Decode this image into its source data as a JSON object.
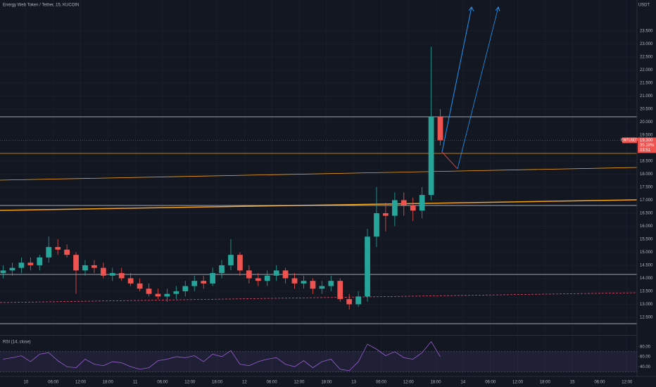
{
  "chart_data": [
    {
      "type": "candlestick",
      "title": "Energy Web Token / Tether, 15, KUCOIN",
      "unit_label": "USDT",
      "x": [
        -5,
        -3,
        -1,
        1,
        3,
        5,
        7,
        9,
        11,
        13,
        15,
        17,
        19,
        21,
        23,
        25,
        27,
        29,
        31,
        33,
        35,
        37,
        39,
        41,
        43,
        45,
        47,
        49,
        51,
        53,
        55,
        57,
        59,
        61,
        63,
        65,
        67,
        69,
        71,
        73,
        75,
        77,
        79,
        81,
        83,
        85,
        87,
        89,
        91
      ],
      "open": [
        14.2,
        14.3,
        14.4,
        14.6,
        14.5,
        14.8,
        15.2,
        15.1,
        14.9,
        14.3,
        14.5,
        14.4,
        14.1,
        14.2,
        14.0,
        13.8,
        13.6,
        13.4,
        13.3,
        13.4,
        13.5,
        13.7,
        13.9,
        13.8,
        14.2,
        14.5,
        14.9,
        14.3,
        14.0,
        13.9,
        14.1,
        14.3,
        14.0,
        13.8,
        13.9,
        13.6,
        13.7,
        13.9,
        13.2,
        13.0,
        13.3,
        15.6,
        16.5,
        16.4,
        17.0,
        16.8,
        16.6,
        17.2,
        20.2
      ],
      "high": [
        14.5,
        14.6,
        14.8,
        14.8,
        14.9,
        15.6,
        15.5,
        15.3,
        15.0,
        14.7,
        14.7,
        14.6,
        14.4,
        14.4,
        14.2,
        14.0,
        13.8,
        13.6,
        13.6,
        13.7,
        13.9,
        14.1,
        14.1,
        14.4,
        14.7,
        15.5,
        15.0,
        14.5,
        14.2,
        14.3,
        14.5,
        14.4,
        14.2,
        14.1,
        14.0,
        13.9,
        14.1,
        14.0,
        13.4,
        13.5,
        15.9,
        17.5,
        16.9,
        17.3,
        17.3,
        17.1,
        17.5,
        22.9,
        20.5
      ],
      "low": [
        14.0,
        14.1,
        14.2,
        14.3,
        14.3,
        14.6,
        14.9,
        14.8,
        13.4,
        14.1,
        14.2,
        14.0,
        13.9,
        13.9,
        13.7,
        13.5,
        13.3,
        13.2,
        13.1,
        13.2,
        13.3,
        13.5,
        13.6,
        13.7,
        14.0,
        14.3,
        14.1,
        13.8,
        13.7,
        13.7,
        13.9,
        13.8,
        13.6,
        13.6,
        13.4,
        13.4,
        13.5,
        13.1,
        12.8,
        12.9,
        13.1,
        15.2,
        15.8,
        16.0,
        16.4,
        16.2,
        16.3,
        17.0,
        19.1
      ],
      "close": [
        14.3,
        14.4,
        14.6,
        14.5,
        14.8,
        15.2,
        15.1,
        14.9,
        14.3,
        14.5,
        14.4,
        14.1,
        14.2,
        14.0,
        13.8,
        13.6,
        13.4,
        13.3,
        13.4,
        13.5,
        13.7,
        13.9,
        13.8,
        14.2,
        14.5,
        14.9,
        14.3,
        14.0,
        13.9,
        14.1,
        14.3,
        14.0,
        13.8,
        13.9,
        13.6,
        13.7,
        13.9,
        13.2,
        13.0,
        13.3,
        15.6,
        16.5,
        16.4,
        17.0,
        16.8,
        16.6,
        17.2,
        20.2,
        19.3
      ],
      "up_color": "#26a69a",
      "down_color": "#ef5350",
      "last_price": {
        "symbol": "EWTUSDT",
        "value": 19.3,
        "label": "19.300",
        "change": "35.18%",
        "countdown": "03:51"
      },
      "xlim": [
        -5.7,
        134.2
      ],
      "ylim": [
        11.85,
        24.69
      ],
      "xticks": [
        {
          "value": 0,
          "label": "10"
        },
        {
          "value": 6,
          "label": "06:00"
        },
        {
          "value": 12,
          "label": "12:00"
        },
        {
          "value": 18,
          "label": "18:00"
        },
        {
          "value": 24,
          "label": "11"
        },
        {
          "value": 30,
          "label": "06:00"
        },
        {
          "value": 36,
          "label": "12:00"
        },
        {
          "value": 42,
          "label": "18:00"
        },
        {
          "value": 48,
          "label": "12"
        },
        {
          "value": 54,
          "label": "06:00"
        },
        {
          "value": 60,
          "label": "12:00"
        },
        {
          "value": 66,
          "label": "18:00"
        },
        {
          "value": 72,
          "label": "13"
        },
        {
          "value": 78,
          "label": "06:00"
        },
        {
          "value": 84,
          "label": "12:00"
        },
        {
          "value": 90,
          "label": "18:00"
        },
        {
          "value": 96,
          "label": "14"
        },
        {
          "value": 102,
          "label": "06:00"
        },
        {
          "value": 108,
          "label": "12:00"
        },
        {
          "value": 114,
          "label": "18:00"
        },
        {
          "value": 120,
          "label": "15"
        },
        {
          "value": 126,
          "label": "06:00"
        },
        {
          "value": 132,
          "label": "12:00"
        }
      ],
      "yticks": [
        {
          "value": 12.5,
          "label": "12.500"
        },
        {
          "value": 13,
          "label": "13.000"
        },
        {
          "value": 13.5,
          "label": "13.500"
        },
        {
          "value": 14,
          "label": "14.000"
        },
        {
          "value": 14.5,
          "label": "14.500"
        },
        {
          "value": 15,
          "label": "15.000"
        },
        {
          "value": 15.5,
          "label": "15.500"
        },
        {
          "value": 16,
          "label": "16.000"
        },
        {
          "value": 16.5,
          "label": "16.500"
        },
        {
          "value": 17,
          "label": "17.000"
        },
        {
          "value": 17.5,
          "label": "17.500"
        },
        {
          "value": 18,
          "label": "18.000"
        },
        {
          "value": 18.5,
          "label": "18.500"
        },
        {
          "value": 19,
          "label": "19.000"
        },
        {
          "value": 19.5,
          "label": "19.500"
        },
        {
          "value": 20,
          "label": "20.000"
        },
        {
          "value": 20.5,
          "label": "20.500"
        },
        {
          "value": 21,
          "label": "21.000"
        },
        {
          "value": 21.5,
          "label": "21.500"
        },
        {
          "value": 22,
          "label": "22.000"
        },
        {
          "value": 22.5,
          "label": "22.500"
        },
        {
          "value": 23,
          "label": "23.000"
        },
        {
          "value": 23.5,
          "label": "23.500"
        }
      ],
      "grid": true
    },
    {
      "type": "line",
      "title": "RSI (14, close)",
      "color": "#9c5fd6",
      "x": [
        -5,
        -3,
        -1,
        1,
        3,
        5,
        7,
        9,
        11,
        13,
        15,
        17,
        19,
        21,
        23,
        25,
        27,
        29,
        31,
        33,
        35,
        37,
        39,
        41,
        43,
        45,
        47,
        49,
        51,
        53,
        55,
        57,
        59,
        61,
        63,
        65,
        67,
        69,
        71,
        73,
        75,
        77,
        79,
        81,
        83,
        85,
        87,
        89,
        91
      ],
      "values": [
        55,
        58,
        62,
        50,
        65,
        68,
        52,
        40,
        38,
        55,
        45,
        42,
        50,
        48,
        40,
        35,
        38,
        52,
        55,
        60,
        58,
        62,
        50,
        65,
        60,
        72,
        45,
        42,
        50,
        55,
        58,
        45,
        40,
        52,
        38,
        50,
        55,
        35,
        32,
        50,
        85,
        75,
        62,
        70,
        58,
        55,
        68,
        90,
        60
      ],
      "xlim": [
        -5.7,
        134.2
      ],
      "ylim": [
        22,
        102
      ],
      "yticks": [
        {
          "value": 40,
          "label": "40.00"
        },
        {
          "value": 60,
          "label": "60.00"
        },
        {
          "value": 80,
          "label": "80.00"
        }
      ]
    }
  ]
}
